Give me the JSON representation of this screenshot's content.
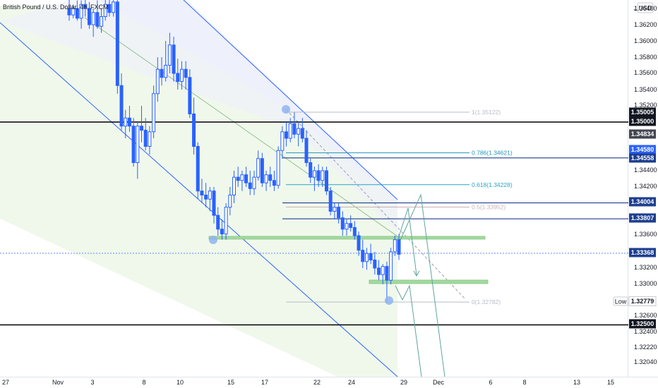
{
  "chart_data": {
    "type": "candlestick",
    "title": "British Pound / U.S. Dollar, 4h, FXCM",
    "currency": "USD",
    "colors": {
      "up": "#2962ff",
      "down": "#2962ff",
      "channel": "#2962ff",
      "fib": "#22a0c8",
      "support": "#7ec97a",
      "lines": "#000000",
      "arrows": "#5fa59b"
    },
    "y_axis": {
      "ticks": [
        "1.36400",
        "1.36200",
        "1.36000",
        "1.35800",
        "1.35600",
        "1.35400",
        "1.35200",
        "1.34400",
        "1.34200",
        "1.33600",
        "1.33200",
        "1.33000",
        "1.32600",
        "1.32400",
        "1.32220",
        "1.32040"
      ],
      "range": [
        1.3195,
        1.3652
      ]
    },
    "x_axis": {
      "ticks": [
        "27",
        "Nov",
        "3",
        "8",
        "10",
        "15",
        "17",
        "22",
        "24",
        "29",
        "Dec",
        "6",
        "8",
        "13",
        "15"
      ]
    },
    "candles": [
      [
        1.364,
        1.3652,
        1.3625,
        1.3632
      ],
      [
        1.3632,
        1.3645,
        1.3628,
        1.364
      ],
      [
        1.364,
        1.365,
        1.3625,
        1.3628
      ],
      [
        1.3628,
        1.365,
        1.3615,
        1.3645
      ],
      [
        1.3645,
        1.3652,
        1.363,
        1.364
      ],
      [
        1.364,
        1.3648,
        1.3615,
        1.362
      ],
      [
        1.362,
        1.364,
        1.3605,
        1.3635
      ],
      [
        1.3635,
        1.365,
        1.3615,
        1.3618
      ],
      [
        1.3618,
        1.364,
        1.361,
        1.363
      ],
      [
        1.363,
        1.3652,
        1.3625,
        1.3645
      ],
      [
        1.3645,
        1.3652,
        1.363,
        1.3635
      ],
      [
        1.3635,
        1.3652,
        1.363,
        1.3648
      ],
      [
        1.3648,
        1.3652,
        1.3535,
        1.3545
      ],
      [
        1.3545,
        1.356,
        1.349,
        1.3495
      ],
      [
        1.3495,
        1.3515,
        1.348,
        1.3505
      ],
      [
        1.3505,
        1.352,
        1.3488,
        1.3495
      ],
      [
        1.3495,
        1.3505,
        1.3445,
        1.345
      ],
      [
        1.345,
        1.35,
        1.343,
        1.3495
      ],
      [
        1.3495,
        1.352,
        1.3475,
        1.349
      ],
      [
        1.349,
        1.3505,
        1.3465,
        1.347
      ],
      [
        1.347,
        1.3495,
        1.346,
        1.3488
      ],
      [
        1.3488,
        1.3545,
        1.348,
        1.3535
      ],
      [
        1.3535,
        1.358,
        1.3525,
        1.3565
      ],
      [
        1.3565,
        1.358,
        1.3545,
        1.3555
      ],
      [
        1.3555,
        1.36,
        1.355,
        1.357
      ],
      [
        1.357,
        1.361,
        1.356,
        1.3595
      ],
      [
        1.3595,
        1.3605,
        1.355,
        1.356
      ],
      [
        1.356,
        1.3578,
        1.354,
        1.355
      ],
      [
        1.355,
        1.3575,
        1.354,
        1.3565
      ],
      [
        1.3565,
        1.3575,
        1.354,
        1.3555
      ],
      [
        1.3555,
        1.3565,
        1.3505,
        1.351
      ],
      [
        1.351,
        1.353,
        1.346,
        1.347
      ],
      [
        1.347,
        1.3475,
        1.3405,
        1.3415
      ],
      [
        1.3415,
        1.343,
        1.34,
        1.341
      ],
      [
        1.341,
        1.3425,
        1.3395,
        1.3405
      ],
      [
        1.3405,
        1.342,
        1.339,
        1.3415
      ],
      [
        1.3415,
        1.342,
        1.3375,
        1.3385
      ],
      [
        1.3385,
        1.3395,
        1.336,
        1.3368
      ],
      [
        1.3368,
        1.338,
        1.3355,
        1.3362
      ],
      [
        1.3362,
        1.34,
        1.3355,
        1.3395
      ],
      [
        1.3395,
        1.342,
        1.3385,
        1.341
      ],
      [
        1.341,
        1.344,
        1.34,
        1.3432
      ],
      [
        1.3432,
        1.3445,
        1.342,
        1.3428
      ],
      [
        1.3428,
        1.344,
        1.3415,
        1.3435
      ],
      [
        1.3435,
        1.3445,
        1.342,
        1.3425
      ],
      [
        1.3425,
        1.344,
        1.341,
        1.3418
      ],
      [
        1.3418,
        1.344,
        1.341,
        1.3432
      ],
      [
        1.3432,
        1.3465,
        1.3428,
        1.3455
      ],
      [
        1.3455,
        1.3462,
        1.342,
        1.3425
      ],
      [
        1.3425,
        1.344,
        1.3415,
        1.3435
      ],
      [
        1.3435,
        1.3445,
        1.342,
        1.3428
      ],
      [
        1.3428,
        1.344,
        1.3415,
        1.3422
      ],
      [
        1.3422,
        1.347,
        1.3418,
        1.3465
      ],
      [
        1.3465,
        1.3495,
        1.3455,
        1.3488
      ],
      [
        1.3488,
        1.35,
        1.347,
        1.348
      ],
      [
        1.348,
        1.3505,
        1.3475,
        1.3498
      ],
      [
        1.3498,
        1.3512,
        1.348,
        1.3485
      ],
      [
        1.3485,
        1.35,
        1.347,
        1.3492
      ],
      [
        1.3492,
        1.3505,
        1.3475,
        1.348
      ],
      [
        1.348,
        1.349,
        1.3445,
        1.345
      ],
      [
        1.345,
        1.3455,
        1.3425,
        1.3432
      ],
      [
        1.3432,
        1.3445,
        1.3415,
        1.344
      ],
      [
        1.344,
        1.3448,
        1.342,
        1.3428
      ],
      [
        1.3428,
        1.3445,
        1.342,
        1.344
      ],
      [
        1.344,
        1.3445,
        1.341,
        1.3415
      ],
      [
        1.3415,
        1.342,
        1.3385,
        1.339
      ],
      [
        1.339,
        1.34,
        1.338,
        1.3395
      ],
      [
        1.3395,
        1.34,
        1.3375,
        1.3382
      ],
      [
        1.3382,
        1.339,
        1.336,
        1.3368
      ],
      [
        1.3368,
        1.338,
        1.336,
        1.3375
      ],
      [
        1.3375,
        1.3385,
        1.3365,
        1.337
      ],
      [
        1.337,
        1.3378,
        1.3355,
        1.336
      ],
      [
        1.336,
        1.3365,
        1.3335,
        1.3342
      ],
      [
        1.3342,
        1.3355,
        1.332,
        1.3328
      ],
      [
        1.3328,
        1.3345,
        1.3318,
        1.3338
      ],
      [
        1.3338,
        1.335,
        1.3325,
        1.333
      ],
      [
        1.333,
        1.334,
        1.3312,
        1.332
      ],
      [
        1.332,
        1.333,
        1.3305,
        1.3312
      ],
      [
        1.3312,
        1.3325,
        1.33,
        1.3322
      ],
      [
        1.3322,
        1.3328,
        1.3278,
        1.3305
      ],
      [
        1.3305,
        1.3345,
        1.33,
        1.334
      ],
      [
        1.334,
        1.336,
        1.3335,
        1.3355
      ],
      [
        1.3355,
        1.3362,
        1.333,
        1.3337
      ]
    ],
    "candle_x": {
      "first": 98,
      "last": 565
    },
    "price_labels": [
      {
        "text": "1.35005",
        "price": 1.35005,
        "style": "dark"
      },
      {
        "text": "1.35000",
        "price": 1.35,
        "style": "dark"
      },
      {
        "text": "1.34834",
        "price": 1.34834,
        "style": "gray"
      },
      {
        "text": "1.34580",
        "price": 1.3458,
        "style": "blue"
      },
      {
        "text": "1.34558",
        "price": 1.34558,
        "style": "darkblue"
      },
      {
        "text": "1.34004",
        "price": 1.34004,
        "style": "darkblue"
      },
      {
        "text": "1.33807",
        "price": 1.33807,
        "style": "darkblue"
      },
      {
        "text": "1.33368",
        "price": 1.33368,
        "style": "darkblue"
      },
      {
        "text": "1.32779",
        "price": 1.32779,
        "style": "outline"
      },
      {
        "text": "1.32500",
        "price": 1.325,
        "style": "dark"
      }
    ],
    "low_label": "Low",
    "fib_levels": [
      {
        "label": "1(1.35122)",
        "price": 1.35122,
        "color": "#b7bcc6"
      },
      {
        "label": "0.786(1.34621)",
        "price": 1.34621,
        "color": "#2196b8"
      },
      {
        "label": "0.618(1.34228)",
        "price": 1.34228,
        "color": "#27a6c6"
      },
      {
        "label": "0.5(1.33952)",
        "price": 1.33952,
        "color": "#c8b0b6"
      },
      {
        "label": "0(1.32782)",
        "price": 1.32782,
        "color": "#b7bcc6"
      }
    ],
    "horizontal_lines": [
      {
        "price": 1.35,
        "color": "#000000"
      },
      {
        "price": 1.34558,
        "color": "#1e3f8f"
      },
      {
        "price": 1.34004,
        "color": "#1e3f8f"
      },
      {
        "price": 1.33807,
        "color": "#1e3f8f"
      },
      {
        "price": 1.325,
        "color": "#000000"
      }
    ]
  }
}
